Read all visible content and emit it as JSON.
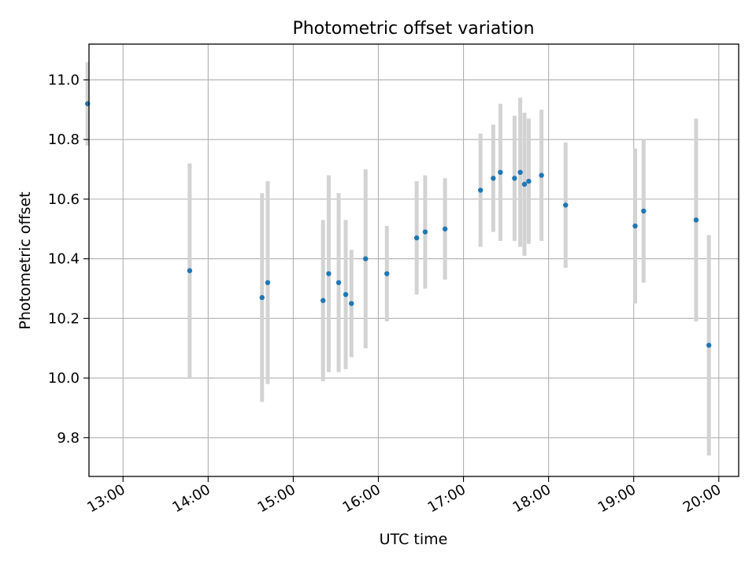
{
  "chart_data": {
    "type": "scatter",
    "title": "Photometric offset variation",
    "xlabel": "UTC time",
    "ylabel": "Photometric offset",
    "x_type": "time",
    "xlim": [
      "12:36",
      "20:14"
    ],
    "ylim": [
      9.67,
      11.12
    ],
    "x_ticks": [
      "13:00",
      "14:00",
      "15:00",
      "16:00",
      "17:00",
      "18:00",
      "19:00",
      "20:00"
    ],
    "y_ticks": [
      "9.8",
      "10.0",
      "10.2",
      "10.4",
      "10.6",
      "10.8",
      "11.0"
    ],
    "grid": true,
    "marker_color": "#1f77b4",
    "errorbar_color": "#d3d3d3",
    "series": [
      {
        "points": [
          {
            "x": "12:35",
            "y": 10.92,
            "err": 0.14
          },
          {
            "x": "13:47",
            "y": 10.36,
            "err": 0.36
          },
          {
            "x": "14:38",
            "y": 10.27,
            "err": 0.35
          },
          {
            "x": "14:42",
            "y": 10.32,
            "err": 0.34
          },
          {
            "x": "15:21",
            "y": 10.26,
            "err": 0.27
          },
          {
            "x": "15:25",
            "y": 10.35,
            "err": 0.33
          },
          {
            "x": "15:32",
            "y": 10.32,
            "err": 0.3
          },
          {
            "x": "15:37",
            "y": 10.28,
            "err": 0.25
          },
          {
            "x": "15:41",
            "y": 10.25,
            "err": 0.18
          },
          {
            "x": "15:51",
            "y": 10.4,
            "err": 0.3
          },
          {
            "x": "16:06",
            "y": 10.35,
            "err": 0.16
          },
          {
            "x": "16:27",
            "y": 10.47,
            "err": 0.19
          },
          {
            "x": "16:33",
            "y": 10.49,
            "err": 0.19
          },
          {
            "x": "16:47",
            "y": 10.5,
            "err": 0.17
          },
          {
            "x": "17:12",
            "y": 10.63,
            "err": 0.19
          },
          {
            "x": "17:21",
            "y": 10.67,
            "err": 0.18
          },
          {
            "x": "17:26",
            "y": 10.69,
            "err": 0.23
          },
          {
            "x": "17:36",
            "y": 10.67,
            "err": 0.21
          },
          {
            "x": "17:40",
            "y": 10.69,
            "err": 0.25
          },
          {
            "x": "17:43",
            "y": 10.65,
            "err": 0.24
          },
          {
            "x": "17:46",
            "y": 10.66,
            "err": 0.21
          },
          {
            "x": "17:55",
            "y": 10.68,
            "err": 0.22
          },
          {
            "x": "18:12",
            "y": 10.58,
            "err": 0.21
          },
          {
            "x": "19:01",
            "y": 10.51,
            "err": 0.26
          },
          {
            "x": "19:07",
            "y": 10.56,
            "err": 0.24
          },
          {
            "x": "19:44",
            "y": 10.53,
            "err": 0.34
          },
          {
            "x": "19:53",
            "y": 10.11,
            "err": 0.37
          }
        ]
      }
    ]
  }
}
